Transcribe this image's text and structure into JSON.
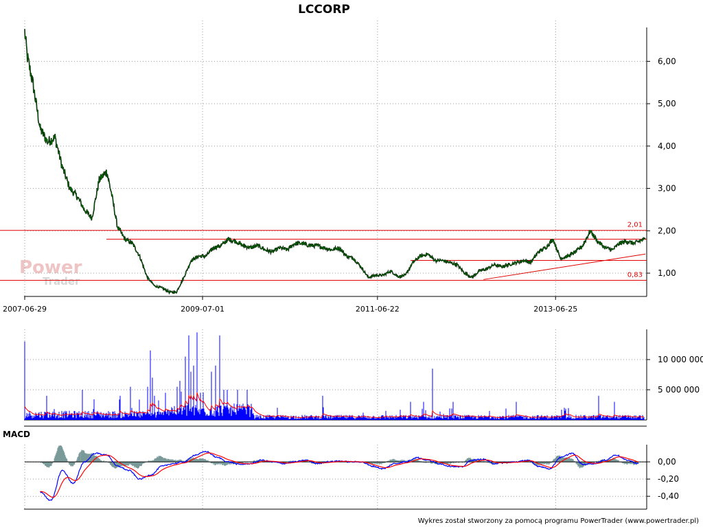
{
  "title": "LCCORP",
  "footer": "Wykres został stworzony za pomocą programu PowerTrader (www.powertrader.pl)",
  "watermark": {
    "line1": "Power",
    "line2": "Trader"
  },
  "colors": {
    "price": "#006400",
    "price_dark": "#000000",
    "level": "#e00000",
    "volume": "#0000ff",
    "volume_avg": "#ff0000",
    "macd_line": "#0000ff",
    "macd_signal": "#ff0000",
    "macd_hist": "#7a9a9a",
    "grid": "#999999",
    "axis": "#000000",
    "watermark": "#e8b0b0"
  },
  "chart_data": [
    {
      "type": "line",
      "name": "price",
      "title": "LCCORP",
      "xlabel": "",
      "ylabel": "",
      "x_ticks": [
        "2007-06-29",
        "2009-07-01",
        "2011-06-22",
        "2013-06-25"
      ],
      "x_range": [
        "2007-06-29",
        "2014-06-30"
      ],
      "y_ticks": [
        "1,00",
        "2,00",
        "3,00",
        "4,00",
        "5,00",
        "6,00"
      ],
      "ylim": [
        0.45,
        6.8
      ],
      "grid": true,
      "series": [
        {
          "x": [
            "2007-06-29",
            "2007-07-10",
            "2007-08-01",
            "2007-09-01",
            "2007-10-01",
            "2007-11-01",
            "2007-12-01",
            "2008-01-01",
            "2008-02-01",
            "2008-03-01",
            "2008-04-01",
            "2008-05-01",
            "2008-06-01",
            "2008-06-20",
            "2008-07-15",
            "2008-08-15",
            "2008-09-15",
            "2008-10-15",
            "2008-11-15",
            "2008-12-15",
            "2009-01-15",
            "2009-02-15",
            "2009-03-15",
            "2009-04-15",
            "2009-05-15",
            "2009-06-15",
            "2009-07-15",
            "2009-08-15",
            "2009-09-15",
            "2009-10-15",
            "2009-11-15",
            "2009-12-15",
            "2010-01-15",
            "2010-02-15",
            "2010-03-15",
            "2010-04-15",
            "2010-05-15",
            "2010-06-15",
            "2010-07-15",
            "2010-08-15",
            "2010-09-15",
            "2010-10-15",
            "2010-11-15",
            "2010-12-15",
            "2011-01-15",
            "2011-02-15",
            "2011-03-15",
            "2011-04-15",
            "2011-05-15",
            "2011-06-15",
            "2011-07-15",
            "2011-08-15",
            "2011-09-15",
            "2011-10-15",
            "2011-11-15",
            "2011-12-15",
            "2012-01-15",
            "2012-02-15",
            "2012-03-15",
            "2012-04-15",
            "2012-05-15",
            "2012-06-15",
            "2012-07-15",
            "2012-08-15",
            "2012-09-15",
            "2012-10-15",
            "2012-11-15",
            "2012-12-15",
            "2013-01-15",
            "2013-02-15",
            "2013-03-15",
            "2013-04-15",
            "2013-05-15",
            "2013-06-15",
            "2013-07-15",
            "2013-08-15",
            "2013-09-15",
            "2013-10-15",
            "2013-11-15",
            "2013-12-15",
            "2014-01-15",
            "2014-02-15",
            "2014-03-15",
            "2014-04-15",
            "2014-05-15",
            "2014-06-15",
            "2014-06-30"
          ],
          "values": [
            6.7,
            6.1,
            5.5,
            4.4,
            4.1,
            4.2,
            3.5,
            3.0,
            2.8,
            2.5,
            2.3,
            3.2,
            3.4,
            2.9,
            2.1,
            1.8,
            1.7,
            1.4,
            0.9,
            0.7,
            0.65,
            0.55,
            0.55,
            0.9,
            1.3,
            1.4,
            1.4,
            1.6,
            1.65,
            1.8,
            1.75,
            1.65,
            1.6,
            1.65,
            1.55,
            1.5,
            1.6,
            1.55,
            1.7,
            1.7,
            1.65,
            1.65,
            1.6,
            1.55,
            1.6,
            1.4,
            1.35,
            1.15,
            0.9,
            0.95,
            0.95,
            1.05,
            0.92,
            0.95,
            1.25,
            1.4,
            1.45,
            1.3,
            1.3,
            1.25,
            1.2,
            1.0,
            0.9,
            1.05,
            1.1,
            1.2,
            1.15,
            1.2,
            1.25,
            1.3,
            1.25,
            1.5,
            1.6,
            1.8,
            1.35,
            1.4,
            1.5,
            1.65,
            2.0,
            1.75,
            1.6,
            1.55,
            1.7,
            1.75,
            1.7,
            1.78,
            1.8
          ]
        }
      ],
      "levels": [
        {
          "label": "2,01",
          "value": 2.01
        },
        {
          "value": 1.8
        },
        {
          "value": 1.3
        },
        {
          "label": "0,83",
          "value": 0.83
        }
      ],
      "trendline": {
        "from": [
          "2012-09-01",
          0.85
        ],
        "to": [
          "2014-06-30",
          1.45
        ]
      }
    },
    {
      "type": "bar",
      "name": "volume",
      "y_ticks": [
        "5 000 000",
        "10 000 000"
      ],
      "ylim": [
        0,
        15000000
      ],
      "series": [
        {
          "name": "volume"
        },
        {
          "name": "volume_average"
        }
      ]
    },
    {
      "type": "line",
      "name": "MACD",
      "title": "MACD",
      "y_ticks": [
        "0,00",
        "-0,20",
        "-0,40"
      ],
      "ylim": [
        -0.55,
        0.2
      ],
      "series": [
        {
          "name": "macd",
          "x": [
            "2007-09-01",
            "2007-10-15",
            "2007-12-01",
            "2008-01-15",
            "2008-03-01",
            "2008-04-15",
            "2008-06-01",
            "2008-07-15",
            "2008-09-01",
            "2008-10-15",
            "2008-12-01",
            "2009-01-15",
            "2009-03-01",
            "2009-04-15",
            "2009-06-01",
            "2009-07-15",
            "2009-09-01",
            "2009-10-15",
            "2009-12-01",
            "2010-01-15",
            "2010-03-01",
            "2010-04-15",
            "2010-06-01",
            "2010-07-15",
            "2010-09-01",
            "2010-10-15",
            "2010-12-01",
            "2011-01-15",
            "2011-03-01",
            "2011-04-15",
            "2011-06-01",
            "2011-07-15",
            "2011-09-01",
            "2011-10-15",
            "2011-12-01",
            "2012-01-15",
            "2012-03-01",
            "2012-04-15",
            "2012-06-01",
            "2012-07-15",
            "2012-09-01",
            "2012-10-15",
            "2012-12-01",
            "2013-01-15",
            "2013-03-01",
            "2013-04-15",
            "2013-06-01",
            "2013-07-15",
            "2013-09-01",
            "2013-10-15",
            "2013-12-01",
            "2014-01-15",
            "2014-03-01",
            "2014-04-15",
            "2014-06-01"
          ],
          "values": [
            -0.35,
            -0.45,
            -0.1,
            -0.25,
            0.0,
            0.1,
            0.08,
            -0.05,
            -0.1,
            -0.2,
            -0.15,
            -0.05,
            -0.02,
            0.0,
            0.08,
            0.12,
            0.05,
            0.0,
            -0.03,
            -0.02,
            0.02,
            0.0,
            -0.02,
            0.0,
            0.02,
            -0.02,
            0.0,
            0.01,
            0.0,
            0.0,
            -0.05,
            -0.08,
            -0.02,
            0.0,
            0.05,
            0.02,
            -0.02,
            -0.05,
            -0.06,
            0.02,
            0.03,
            -0.02,
            -0.01,
            0.0,
            0.02,
            -0.05,
            -0.08,
            0.05,
            0.1,
            -0.03,
            -0.02,
            0.02,
            0.08,
            0.02,
            -0.02
          ]
        },
        {
          "name": "signal"
        },
        {
          "name": "histogram"
        }
      ]
    }
  ]
}
